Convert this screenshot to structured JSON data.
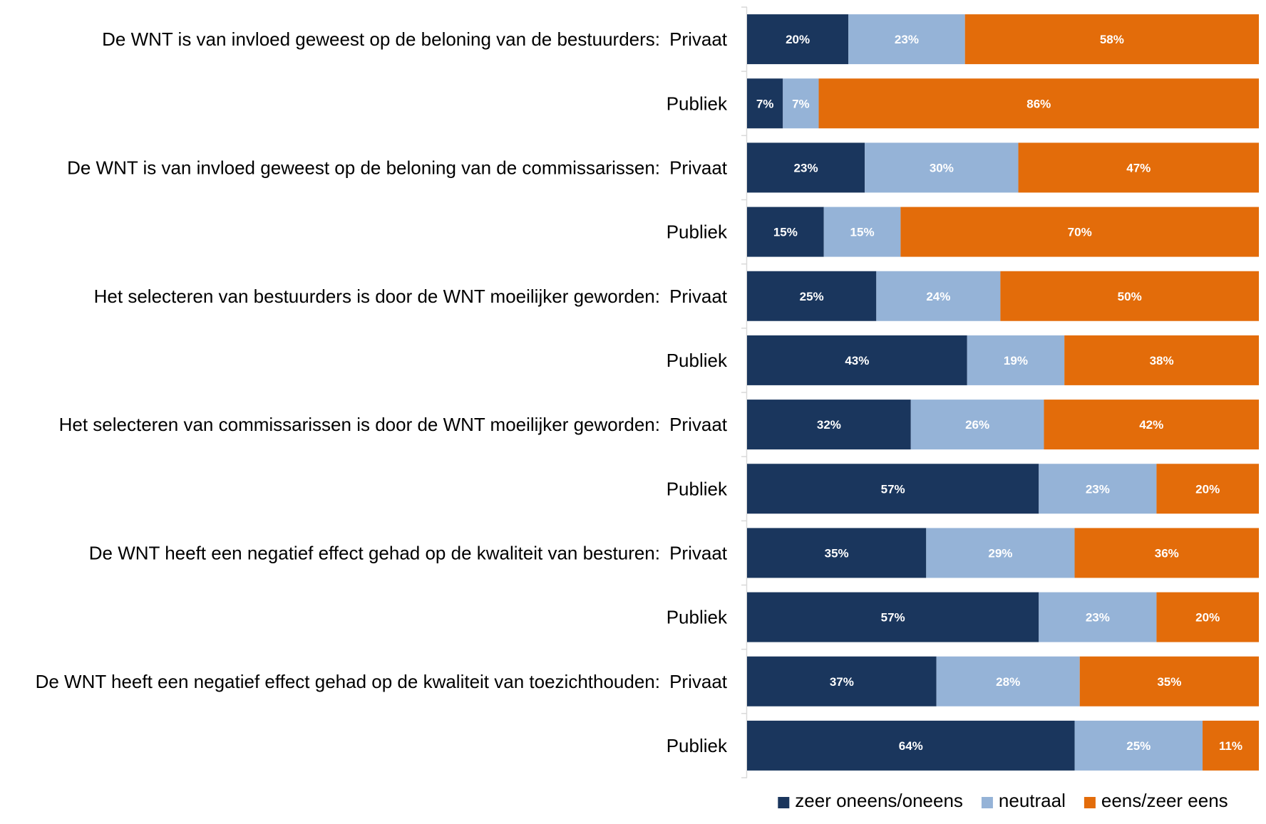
{
  "chart_data": {
    "type": "bar",
    "orientation": "horizontal",
    "stacked": true,
    "percent_stacked": true,
    "title": "",
    "xlabel": "",
    "ylabel": "",
    "xlim": [
      0,
      100
    ],
    "grid": false,
    "legend_position": "bottom",
    "value_format": "{v}%",
    "categories": [
      {
        "statement": "De WNT is van invloed geweest op de beloning van de bestuurders:",
        "group": "Privaat"
      },
      {
        "statement": "",
        "group": "Publiek"
      },
      {
        "statement": "De WNT is van invloed geweest op de beloning van de commissarissen:",
        "group": "Privaat"
      },
      {
        "statement": "",
        "group": "Publiek"
      },
      {
        "statement": "Het selecteren van bestuurders is door de WNT moeilijker geworden:",
        "group": "Privaat"
      },
      {
        "statement": "",
        "group": "Publiek"
      },
      {
        "statement": "Het selecteren van commissarissen is door de WNT moeilijker geworden:",
        "group": "Privaat"
      },
      {
        "statement": "",
        "group": "Publiek"
      },
      {
        "statement": "De WNT heeft een negatief effect gehad op de kwaliteit van besturen:",
        "group": "Privaat"
      },
      {
        "statement": "",
        "group": "Publiek"
      },
      {
        "statement": "De WNT heeft een negatief effect gehad op de kwaliteit van toezichthouden:",
        "group": "Privaat"
      },
      {
        "statement": "",
        "group": "Publiek"
      }
    ],
    "series": [
      {
        "name": "zeer oneens/oneens",
        "color": "#1a365d",
        "values": [
          20,
          7,
          23,
          15,
          25,
          43,
          32,
          57,
          35,
          57,
          37,
          64
        ]
      },
      {
        "name": "neutraal",
        "color": "#95b3d7",
        "values": [
          23,
          7,
          30,
          15,
          24,
          19,
          26,
          23,
          29,
          23,
          28,
          25
        ]
      },
      {
        "name": "eens/zeer eens",
        "color": "#e36c0a",
        "values": [
          58,
          86,
          47,
          70,
          50,
          38,
          42,
          20,
          36,
          20,
          35,
          11
        ]
      }
    ]
  }
}
